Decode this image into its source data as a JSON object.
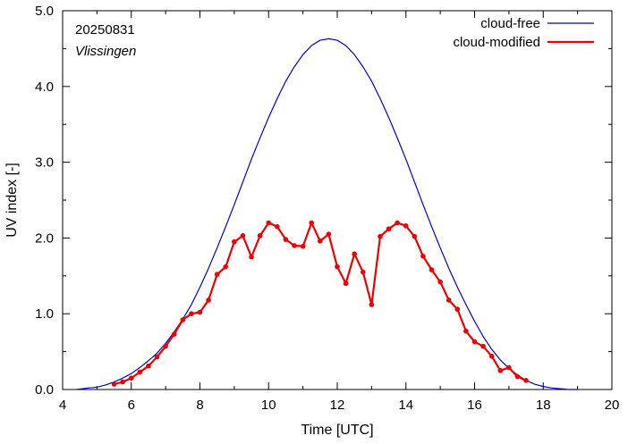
{
  "chart_data": {
    "type": "line",
    "xlabel": "Time  [UTC]",
    "ylabel": "UV index  [-]",
    "xlim": [
      4,
      20
    ],
    "ylim": [
      0,
      5
    ],
    "xticks": [
      "4",
      "6",
      "8",
      "10",
      "12",
      "14",
      "16",
      "18",
      "20"
    ],
    "yticks": [
      "0.0",
      "1.0",
      "2.0",
      "3.0",
      "4.0",
      "5.0"
    ],
    "grid": false,
    "legend_position": "top-right",
    "annotations": [
      "20250831",
      "Vlissingen"
    ],
    "colors": {
      "cloud_free": "#0000cc",
      "cloud_modified": "#ee0000"
    },
    "series": [
      {
        "name": "cloud-free",
        "x": [
          4.4,
          4.75,
          5.0,
          5.25,
          5.5,
          5.75,
          6.0,
          6.25,
          6.5,
          6.75,
          7.0,
          7.25,
          7.5,
          7.75,
          8.0,
          8.25,
          8.5,
          8.75,
          9.0,
          9.25,
          9.5,
          9.75,
          10.0,
          10.25,
          10.5,
          10.75,
          11.0,
          11.25,
          11.5,
          11.75,
          12.0,
          12.25,
          12.5,
          12.75,
          13.0,
          13.25,
          13.5,
          13.75,
          14.0,
          14.25,
          14.5,
          14.75,
          15.0,
          15.25,
          15.5,
          15.75,
          16.0,
          16.25,
          16.5,
          16.75,
          17.0,
          17.25,
          17.5,
          17.75,
          18.0,
          18.25,
          18.5,
          18.75,
          19.0
        ],
        "y": [
          0.0,
          0.02,
          0.03,
          0.06,
          0.1,
          0.15,
          0.21,
          0.29,
          0.38,
          0.48,
          0.61,
          0.76,
          0.93,
          1.12,
          1.35,
          1.6,
          1.87,
          2.15,
          2.44,
          2.74,
          3.04,
          3.32,
          3.59,
          3.84,
          4.07,
          4.26,
          4.42,
          4.54,
          4.61,
          4.63,
          4.61,
          4.54,
          4.42,
          4.26,
          4.07,
          3.84,
          3.59,
          3.32,
          3.04,
          2.74,
          2.44,
          2.15,
          1.87,
          1.6,
          1.35,
          1.12,
          0.9,
          0.7,
          0.53,
          0.39,
          0.28,
          0.19,
          0.12,
          0.07,
          0.04,
          0.02,
          0.01,
          0.0,
          0.0
        ]
      },
      {
        "name": "cloud-modified",
        "x": [
          5.5,
          5.75,
          6.0,
          6.25,
          6.5,
          6.75,
          7.0,
          7.25,
          7.5,
          7.75,
          8.0,
          8.25,
          8.5,
          8.75,
          9.0,
          9.25,
          9.5,
          9.75,
          10.0,
          10.25,
          10.5,
          10.75,
          11.0,
          11.25,
          11.5,
          11.75,
          12.0,
          12.25,
          12.5,
          12.75,
          13.0,
          13.25,
          13.5,
          13.75,
          14.0,
          14.25,
          14.5,
          14.75,
          15.0,
          15.25,
          15.5,
          15.75,
          16.0,
          16.25,
          16.5,
          16.75,
          17.0,
          17.25,
          17.5
        ],
        "y": [
          0.07,
          0.1,
          0.15,
          0.23,
          0.31,
          0.43,
          0.57,
          0.73,
          0.92,
          1.0,
          1.02,
          1.18,
          1.52,
          1.62,
          1.95,
          2.03,
          1.75,
          2.03,
          2.2,
          2.15,
          1.98,
          1.9,
          1.89,
          2.2,
          1.96,
          2.05,
          1.62,
          1.4,
          1.79,
          1.55,
          1.12,
          2.02,
          2.12,
          2.2,
          2.16,
          2.02,
          1.76,
          1.58,
          1.42,
          1.18,
          1.06,
          0.77,
          0.63,
          0.57,
          0.44,
          0.25,
          0.29,
          0.17,
          0.12
        ]
      }
    ]
  }
}
